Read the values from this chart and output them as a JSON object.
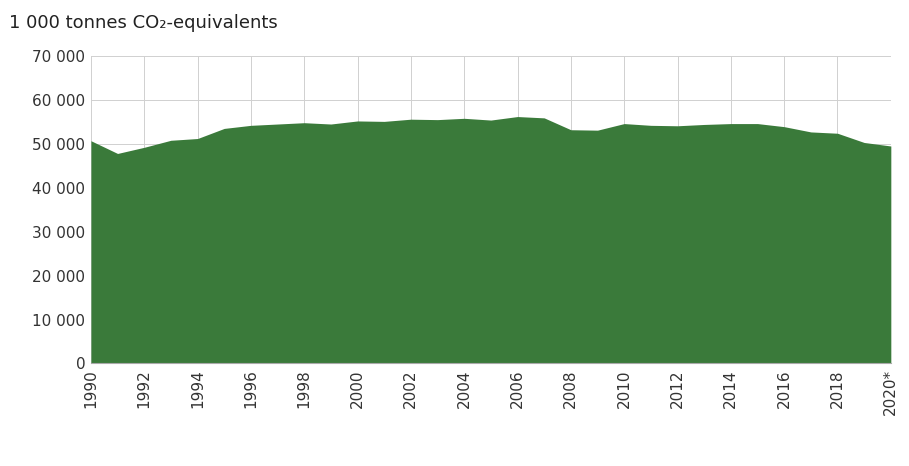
{
  "years": [
    1990,
    1991,
    1992,
    1993,
    1994,
    1995,
    1996,
    1997,
    1998,
    1999,
    2000,
    2001,
    2002,
    2003,
    2004,
    2005,
    2006,
    2007,
    2008,
    2009,
    2010,
    2011,
    2012,
    2013,
    2014,
    2015,
    2016,
    2017,
    2018,
    2019,
    2020
  ],
  "values": [
    50700,
    47800,
    49200,
    50800,
    51200,
    53500,
    54200,
    54500,
    54800,
    54500,
    55200,
    55100,
    55600,
    55500,
    55800,
    55400,
    56200,
    55900,
    53200,
    53100,
    54600,
    54200,
    54100,
    54400,
    54600,
    54600,
    53900,
    52700,
    52400,
    50300,
    49500
  ],
  "fill_color": "#3a7a3a",
  "line_color": "#3a7a3a",
  "background_color": "#ffffff",
  "grid_color": "#d0d0d0",
  "ylabel": "1 000 tonnes CO₂-equivalents",
  "ylim": [
    0,
    70000
  ],
  "yticks": [
    0,
    10000,
    20000,
    30000,
    40000,
    50000,
    60000,
    70000
  ],
  "ytick_labels": [
    "0",
    "10 000",
    "20 000",
    "30 000",
    "40 000",
    "50 000",
    "60 000",
    "70 000"
  ],
  "xtick_labels": [
    "1990",
    "1992",
    "1994",
    "1996",
    "1998",
    "2000",
    "2002",
    "2004",
    "2006",
    "2008",
    "2010",
    "2012",
    "2014",
    "2016",
    "2018",
    "2020*"
  ],
  "xtick_positions": [
    1990,
    1992,
    1994,
    1996,
    1998,
    2000,
    2002,
    2004,
    2006,
    2008,
    2010,
    2012,
    2014,
    2016,
    2018,
    2020
  ],
  "tick_fontsize": 11,
  "ylabel_fontsize": 13
}
